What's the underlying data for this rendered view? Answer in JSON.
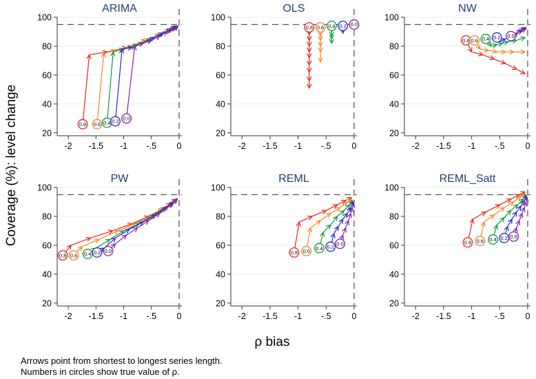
{
  "figure": {
    "ylabel": "Coverage (%): level change",
    "xlabel": "ρ bias",
    "notes": [
      "Arrows point from shortest to longest series length.",
      "Numbers in circles show true value of ρ."
    ],
    "reference": {
      "coverage": 95,
      "bias": 0
    },
    "colors": {
      "0.8": "#e8231b",
      "0.6": "#f5841f",
      "0.4": "#0b9a3a",
      "0.2": "#1f2bd8",
      "0.0": "#8a1fa8"
    }
  },
  "chart_data": [
    {
      "type": "line",
      "title": "ARIMA",
      "xlabel": "ρ bias",
      "ylabel": "Coverage (%): level change",
      "xlim": [
        -2.2,
        0.05
      ],
      "ylim": [
        18,
        100
      ],
      "xticks": [
        "-2",
        "-1.5",
        "-1",
        "-.5",
        "0"
      ],
      "xtick_values": [
        -2,
        -1.5,
        -1,
        -0.5,
        0
      ],
      "yticks": [
        "20",
        "40",
        "60",
        "80",
        "100"
      ],
      "ytick_values": [
        20,
        40,
        60,
        80,
        100
      ],
      "series": [
        {
          "name": "0.8",
          "x": [
            -1.74,
            -1.62,
            -1.3,
            -0.95,
            -0.6,
            -0.35,
            -0.18,
            -0.08,
            -0.03
          ],
          "y": [
            26,
            74,
            76,
            79,
            84,
            88,
            91,
            93,
            94
          ]
        },
        {
          "name": "0.6",
          "x": [
            -1.48,
            -1.36,
            -1.15,
            -0.85,
            -0.55,
            -0.32,
            -0.16,
            -0.07,
            -0.03
          ],
          "y": [
            26,
            75,
            77,
            80,
            85,
            88,
            91,
            93,
            94
          ]
        },
        {
          "name": "0.4",
          "x": [
            -1.3,
            -1.19,
            -1.0,
            -0.75,
            -0.5,
            -0.3,
            -0.15,
            -0.07,
            -0.03
          ],
          "y": [
            27,
            76,
            78,
            81,
            85,
            89,
            91,
            93,
            94
          ]
        },
        {
          "name": "0.2",
          "x": [
            -1.15,
            -1.03,
            -0.85,
            -0.65,
            -0.45,
            -0.28,
            -0.14,
            -0.06,
            -0.02
          ],
          "y": [
            28,
            78,
            79,
            82,
            86,
            89,
            92,
            93,
            94
          ]
        },
        {
          "name": "0.0",
          "x": [
            -0.95,
            -0.8,
            -0.65,
            -0.5,
            -0.35,
            -0.22,
            -0.12,
            -0.05,
            -0.02
          ],
          "y": [
            30,
            80,
            82,
            84,
            87,
            90,
            92,
            93,
            94
          ]
        }
      ]
    },
    {
      "type": "line",
      "title": "OLS",
      "xlabel": "ρ bias",
      "ylabel": "Coverage (%): level change",
      "xlim": [
        -2.2,
        0.05
      ],
      "ylim": [
        18,
        100
      ],
      "xticks": [
        "-2",
        "-1.5",
        "-1",
        "-.5",
        "0"
      ],
      "xtick_values": [
        -2,
        -1.5,
        -1,
        -0.5,
        0
      ],
      "yticks": [
        "20",
        "40",
        "60",
        "80",
        "100"
      ],
      "ytick_values": [
        20,
        40,
        60,
        80,
        100
      ],
      "series": [
        {
          "name": "0.8",
          "x": [
            -0.8,
            -0.8,
            -0.8,
            -0.8,
            -0.8,
            -0.8,
            -0.8,
            -0.8,
            -0.8,
            -0.8
          ],
          "y": [
            93,
            88,
            84,
            80,
            76,
            72,
            67,
            62,
            56,
            51
          ]
        },
        {
          "name": "0.6",
          "x": [
            -0.6,
            -0.6,
            -0.6,
            -0.6,
            -0.6,
            -0.6,
            -0.6
          ],
          "y": [
            93,
            90,
            87,
            84,
            80,
            76,
            69
          ]
        },
        {
          "name": "0.4",
          "x": [
            -0.4,
            -0.4,
            -0.4,
            -0.4,
            -0.4
          ],
          "y": [
            94,
            90,
            87,
            85,
            82
          ]
        },
        {
          "name": "0.2",
          "x": [
            -0.2,
            -0.2,
            -0.2
          ],
          "y": [
            94,
            91,
            89
          ]
        },
        {
          "name": "0.0",
          "x": [
            0,
            0
          ],
          "y": [
            95,
            95
          ]
        }
      ]
    },
    {
      "type": "line",
      "title": "NW",
      "xlabel": "ρ bias",
      "ylabel": "Coverage (%): level change",
      "xlim": [
        -2.2,
        0.05
      ],
      "ylim": [
        18,
        100
      ],
      "xticks": [
        "-2",
        "-1.5",
        "-1",
        "-.5",
        "0"
      ],
      "xtick_values": [
        -2,
        -1.5,
        -1,
        -0.5,
        0
      ],
      "yticks": [
        "20",
        "40",
        "60",
        "80",
        "100"
      ],
      "ytick_values": [
        20,
        40,
        60,
        80,
        100
      ],
      "series": [
        {
          "name": "0.8",
          "x": [
            -1.1,
            -1.0,
            -0.8,
            -0.6,
            -0.4,
            -0.2,
            -0.05
          ],
          "y": [
            84,
            76,
            74,
            71,
            68,
            64,
            61
          ]
        },
        {
          "name": "0.6",
          "x": [
            -0.95,
            -0.85,
            -0.7,
            -0.55,
            -0.4,
            -0.25,
            -0.05
          ],
          "y": [
            84,
            78,
            77,
            76,
            76,
            76,
            76
          ]
        },
        {
          "name": "0.4",
          "x": [
            -0.75,
            -0.65,
            -0.55,
            -0.45,
            -0.35,
            -0.2,
            -0.05
          ],
          "y": [
            85,
            80,
            81,
            82,
            83,
            84,
            86
          ]
        },
        {
          "name": "0.2",
          "x": [
            -0.55,
            -0.5,
            -0.4,
            -0.3,
            -0.2,
            -0.1,
            -0.03
          ],
          "y": [
            86,
            83,
            85,
            87,
            89,
            91,
            92
          ]
        },
        {
          "name": "0.0",
          "x": [
            -0.3,
            -0.25,
            -0.18,
            -0.12,
            -0.07,
            -0.03
          ],
          "y": [
            87,
            87,
            89,
            91,
            92,
            93
          ]
        }
      ]
    },
    {
      "type": "line",
      "title": "PW",
      "xlabel": "ρ bias",
      "ylabel": "Coverage (%): level change",
      "xlim": [
        -2.2,
        0.05
      ],
      "ylim": [
        18,
        100
      ],
      "xticks": [
        "-2",
        "-1.5",
        "-1",
        "-.5",
        "0"
      ],
      "xtick_values": [
        -2,
        -1.5,
        -1,
        -0.5,
        0
      ],
      "yticks": [
        "20",
        "40",
        "60",
        "80",
        "100"
      ],
      "ytick_values": [
        20,
        40,
        60,
        80,
        100
      ],
      "series": [
        {
          "name": "0.8",
          "x": [
            -2.1,
            -1.95,
            -1.6,
            -1.2,
            -0.85,
            -0.55,
            -0.3,
            -0.15,
            -0.05
          ],
          "y": [
            53,
            60,
            65,
            70,
            75,
            80,
            85,
            89,
            92
          ]
        },
        {
          "name": "0.6",
          "x": [
            -1.9,
            -1.75,
            -1.45,
            -1.1,
            -0.8,
            -0.5,
            -0.28,
            -0.13,
            -0.05
          ],
          "y": [
            53,
            59,
            64,
            70,
            75,
            80,
            85,
            89,
            92
          ]
        },
        {
          "name": "0.4",
          "x": [
            -1.65,
            -1.5,
            -1.25,
            -1.0,
            -0.72,
            -0.46,
            -0.25,
            -0.12,
            -0.04
          ],
          "y": [
            54,
            58,
            64,
            70,
            75,
            81,
            86,
            89,
            92
          ]
        },
        {
          "name": "0.2",
          "x": [
            -1.48,
            -1.35,
            -1.15,
            -0.9,
            -0.65,
            -0.42,
            -0.23,
            -0.11,
            -0.04
          ],
          "y": [
            55,
            58,
            65,
            71,
            76,
            81,
            86,
            89,
            92
          ]
        },
        {
          "name": "0.0",
          "x": [
            -1.28,
            -1.15,
            -0.95,
            -0.75,
            -0.55,
            -0.35,
            -0.2,
            -0.09,
            -0.03
          ],
          "y": [
            56,
            61,
            67,
            72,
            77,
            82,
            87,
            90,
            92
          ]
        }
      ]
    },
    {
      "type": "line",
      "title": "REML",
      "xlabel": "ρ bias",
      "ylabel": "Coverage (%): level change",
      "xlim": [
        -2.2,
        0.05
      ],
      "ylim": [
        18,
        100
      ],
      "xticks": [
        "-2",
        "-1.5",
        "-1",
        "-.5",
        "0"
      ],
      "xtick_values": [
        -2,
        -1.5,
        -1,
        -0.5,
        0
      ],
      "yticks": [
        "20",
        "40",
        "60",
        "80",
        "100"
      ],
      "ytick_values": [
        20,
        40,
        60,
        80,
        100
      ],
      "series": [
        {
          "name": "0.8",
          "x": [
            -1.07,
            -0.98,
            -0.75,
            -0.5,
            -0.3,
            -0.15,
            -0.05
          ],
          "y": [
            55,
            76,
            80,
            84,
            88,
            91,
            93
          ]
        },
        {
          "name": "0.6",
          "x": [
            -0.85,
            -0.78,
            -0.6,
            -0.42,
            -0.25,
            -0.12,
            -0.04
          ],
          "y": [
            56,
            72,
            77,
            82,
            86,
            90,
            92
          ]
        },
        {
          "name": "0.4",
          "x": [
            -0.62,
            -0.55,
            -0.42,
            -0.3,
            -0.18,
            -0.08,
            -0.03
          ],
          "y": [
            58,
            69,
            74,
            80,
            84,
            88,
            91
          ]
        },
        {
          "name": "0.2",
          "x": [
            -0.42,
            -0.36,
            -0.28,
            -0.2,
            -0.12,
            -0.06,
            -0.02
          ],
          "y": [
            59,
            68,
            73,
            78,
            82,
            86,
            90
          ]
        },
        {
          "name": "0.0",
          "x": [
            -0.25,
            -0.2,
            -0.15,
            -0.1,
            -0.06,
            -0.03,
            -0.01
          ],
          "y": [
            61,
            67,
            72,
            77,
            82,
            86,
            89
          ]
        }
      ]
    },
    {
      "type": "line",
      "title": "REML_Satt",
      "xlabel": "ρ bias",
      "ylabel": "Coverage (%): level change",
      "xlim": [
        -2.2,
        0.05
      ],
      "ylim": [
        18,
        100
      ],
      "xticks": [
        "-2",
        "-1.5",
        "-1",
        "-.5",
        "0"
      ],
      "xtick_values": [
        -2,
        -1.5,
        -1,
        -0.5,
        0
      ],
      "yticks": [
        "20",
        "40",
        "60",
        "80",
        "100"
      ],
      "ytick_values": [
        20,
        40,
        60,
        80,
        100
      ],
      "series": [
        {
          "name": "0.8",
          "x": [
            -1.07,
            -0.98,
            -0.75,
            -0.5,
            -0.3,
            -0.15,
            -0.05
          ],
          "y": [
            62,
            78,
            83,
            88,
            92,
            95,
            97
          ]
        },
        {
          "name": "0.6",
          "x": [
            -0.85,
            -0.78,
            -0.6,
            -0.42,
            -0.25,
            -0.12,
            -0.04
          ],
          "y": [
            63,
            76,
            81,
            86,
            90,
            94,
            96
          ]
        },
        {
          "name": "0.4",
          "x": [
            -0.62,
            -0.55,
            -0.42,
            -0.3,
            -0.18,
            -0.08,
            -0.03
          ],
          "y": [
            64,
            74,
            79,
            84,
            88,
            92,
            95
          ]
        },
        {
          "name": "0.2",
          "x": [
            -0.42,
            -0.36,
            -0.28,
            -0.2,
            -0.12,
            -0.06,
            -0.02
          ],
          "y": [
            65,
            73,
            78,
            83,
            87,
            91,
            94
          ]
        },
        {
          "name": "0.0",
          "x": [
            -0.25,
            -0.2,
            -0.15,
            -0.1,
            -0.06,
            -0.03,
            -0.01
          ],
          "y": [
            66,
            72,
            77,
            82,
            86,
            90,
            93
          ]
        }
      ]
    }
  ]
}
